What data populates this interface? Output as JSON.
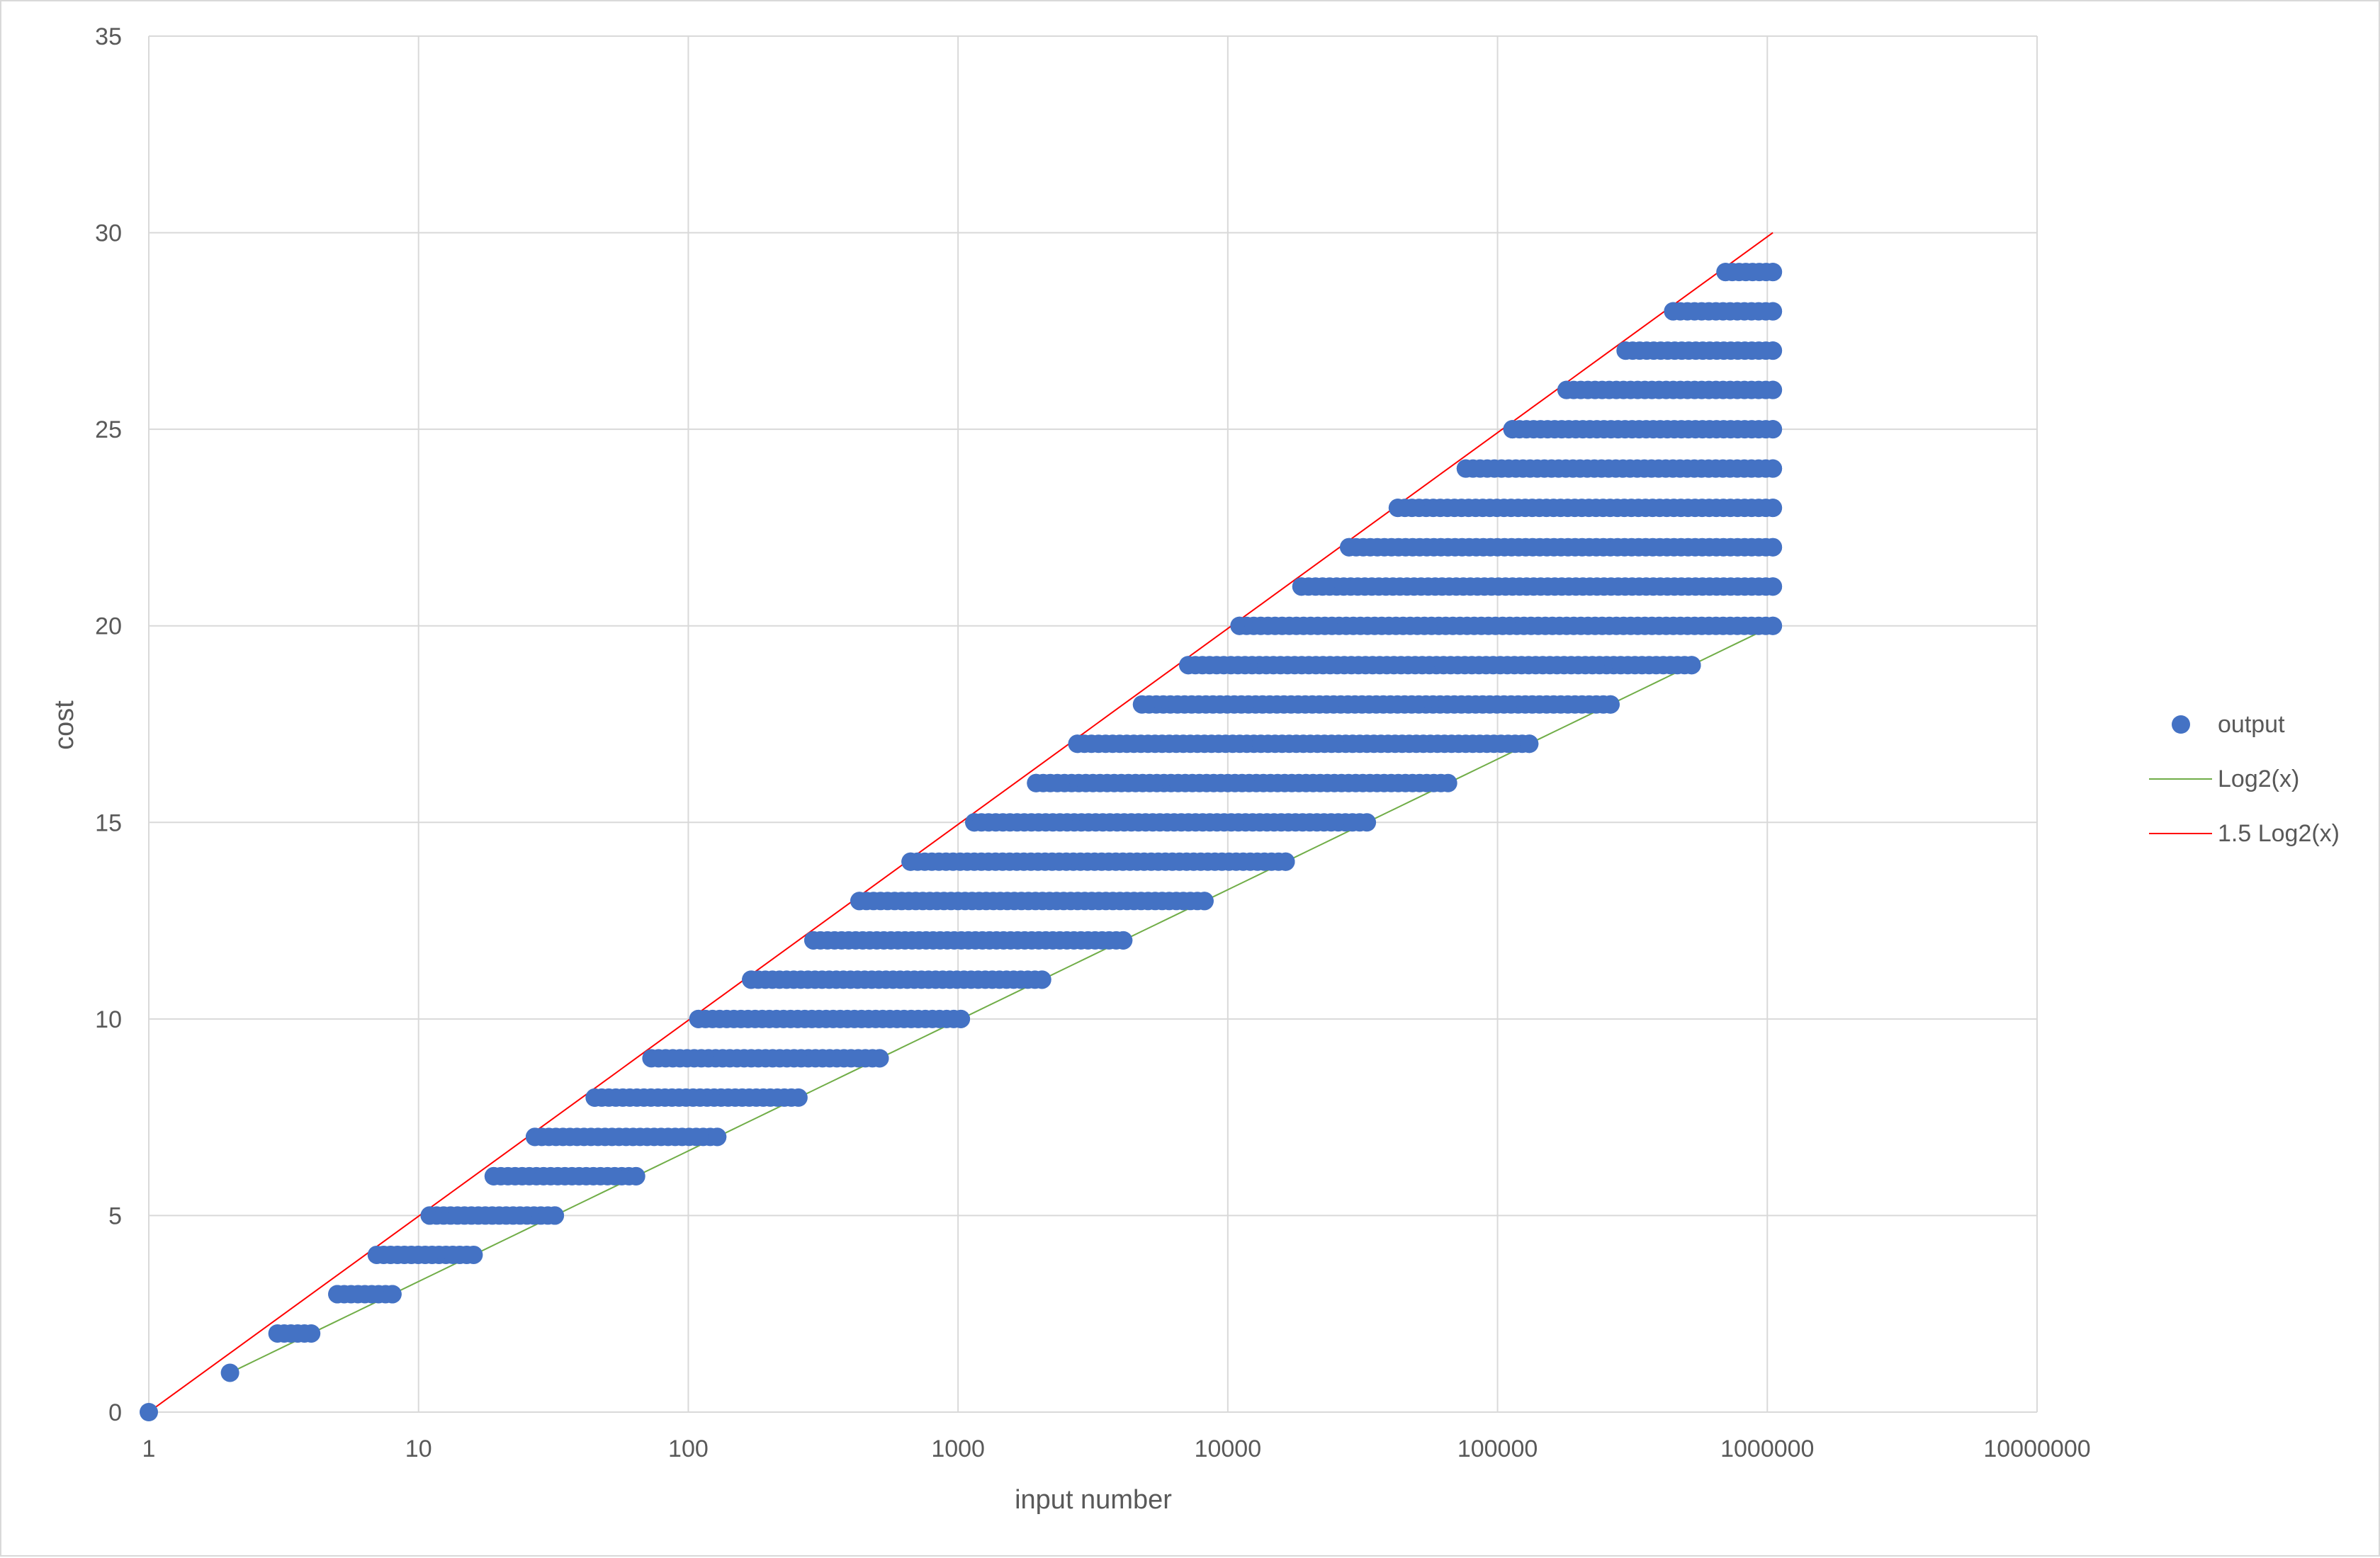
{
  "chart_data": {
    "type": "scatter",
    "title": "",
    "xlabel": "input number",
    "ylabel": "cost",
    "x_scale": "log10",
    "xlim": [
      1,
      10000000
    ],
    "ylim": [
      0,
      35
    ],
    "x_ticks": [
      "1",
      "10",
      "100",
      "1000",
      "10000",
      "100000",
      "1000000",
      "10000000"
    ],
    "y_ticks": [
      "0",
      "5",
      "10",
      "15",
      "20",
      "25",
      "30",
      "35"
    ],
    "grid": true,
    "legend_position": "right",
    "colors": {
      "output": "#4472c4",
      "log2": "#70ad47",
      "log2x15": "#ff0000",
      "grid": "#d9d9d9",
      "text": "#595959"
    },
    "series": [
      {
        "name": "output",
        "kind": "scatter",
        "note": "Each row: [cost, min input, max input]; markers fill the span between min and max on the log axis.",
        "bands": [
          [
            0,
            1,
            1
          ],
          [
            1,
            2,
            2
          ],
          [
            2,
            3,
            4
          ],
          [
            3,
            5,
            8
          ],
          [
            4,
            7,
            16
          ],
          [
            5,
            11,
            32
          ],
          [
            6,
            19,
            64
          ],
          [
            7,
            27,
            128
          ],
          [
            8,
            45,
            256
          ],
          [
            9,
            73,
            512
          ],
          [
            10,
            109,
            1024
          ],
          [
            11,
            171,
            2048
          ],
          [
            12,
            291,
            4096
          ],
          [
            13,
            431,
            8192
          ],
          [
            14,
            667,
            16384
          ],
          [
            15,
            1149,
            32768
          ],
          [
            16,
            1947,
            65536
          ],
          [
            17,
            2769,
            131072
          ],
          [
            18,
            4807,
            262144
          ],
          [
            19,
            7137,
            524288
          ],
          [
            20,
            11051,
            1048576
          ],
          [
            21,
            18753,
            1048576
          ],
          [
            22,
            28161,
            1048576
          ],
          [
            23,
            42689,
            1048576
          ],
          [
            24,
            76287,
            1048576
          ],
          [
            25,
            113537,
            1048576
          ],
          [
            26,
            180239,
            1048576
          ],
          [
            27,
            298499,
            1048576
          ],
          [
            28,
            447749,
            1048576
          ],
          [
            29,
            700000,
            1048576
          ]
        ]
      },
      {
        "name": "Log2(x)",
        "kind": "line",
        "formula": "log2(x)",
        "x_range": [
          2,
          1048576
        ]
      },
      {
        "name": "1.5 Log2(x)",
        "kind": "line",
        "formula": "1.5*log2(x)",
        "x_range": [
          1,
          1048576
        ]
      }
    ]
  }
}
